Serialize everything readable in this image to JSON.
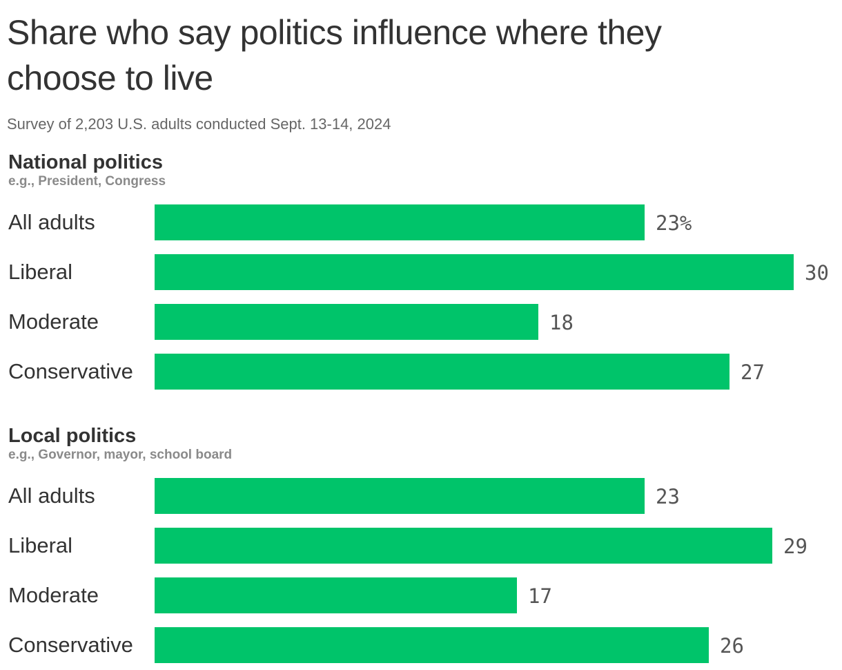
{
  "title": "Share who say politics influence where they choose to live",
  "subtitle": "Survey of 2,203 U.S. adults conducted Sept. 13-14, 2024",
  "colors": {
    "bar": "#00c46a",
    "text": "#333333",
    "muted": "#8a8a8a"
  },
  "chart_data": {
    "type": "bar",
    "orientation": "horizontal",
    "unit": "%",
    "xlim": [
      0,
      30
    ],
    "grid": false,
    "groups": [
      {
        "title": "National politics",
        "subtitle": "e.g., President, Congress",
        "categories": [
          "All adults",
          "Liberal",
          "Moderate",
          "Conservative"
        ],
        "values": [
          23,
          30,
          18,
          27
        ],
        "value_labels": [
          "23%",
          "30",
          "18",
          "27"
        ]
      },
      {
        "title": "Local politics",
        "subtitle": "e.g., Governor, mayor, school board",
        "categories": [
          "All adults",
          "Liberal",
          "Moderate",
          "Conservative"
        ],
        "values": [
          23,
          29,
          17,
          26
        ],
        "value_labels": [
          "23",
          "29",
          "17",
          "26"
        ]
      }
    ]
  }
}
